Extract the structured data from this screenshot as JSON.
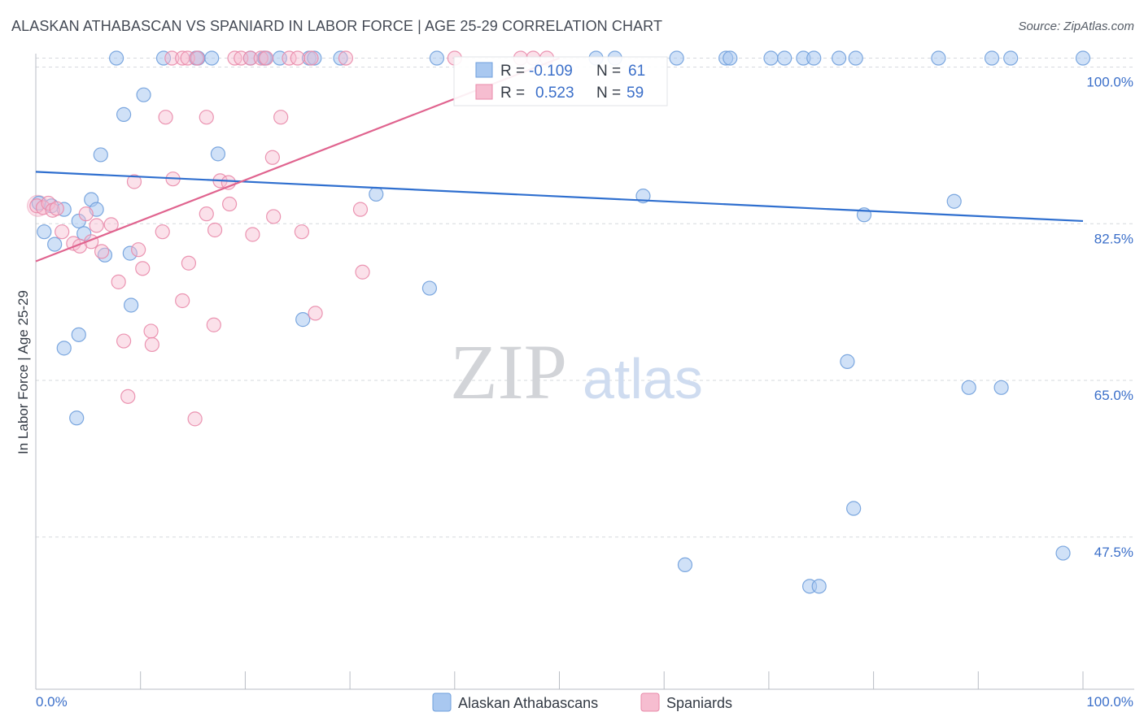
{
  "header": {
    "title": "ALASKAN ATHABASCAN VS SPANIARD IN LABOR FORCE | AGE 25-29 CORRELATION CHART",
    "source": "Source: ZipAtlas.com"
  },
  "watermark": {
    "zip": "ZIP",
    "atlas": "atlas"
  },
  "colors": {
    "blue_fill": "#a9c8f0",
    "blue_stroke": "#6f9fdc",
    "blue_line": "#2f6fcf",
    "pink_fill": "#f6bdd0",
    "pink_stroke": "#e98aaa",
    "pink_line": "#e0648f",
    "value_text": "#3b6fc9",
    "grid": "#d6d9de"
  },
  "stats": [
    {
      "r_label": "R =",
      "r_value": "-0.109",
      "n_label": "N =",
      "n_value": "61"
    },
    {
      "r_label": "R =",
      "r_value": "0.523",
      "n_label": "N =",
      "n_value": "59"
    }
  ],
  "chart_data": {
    "type": "scatter",
    "title": "ALASKAN ATHABASCAN VS SPANIARD IN LABOR FORCE | AGE 25-29 CORRELATION CHART",
    "xlabel": "",
    "ylabel": "In Labor Force | Age 25-29",
    "xlim": [
      0,
      100
    ],
    "ylim": [
      30.5,
      101.5
    ],
    "x_tick_labels": [
      "0.0%",
      "100.0%"
    ],
    "y_ticks": [
      47.5,
      65.0,
      82.5,
      100.0
    ],
    "y_tick_labels": [
      "47.5%",
      "65.0%",
      "82.5%",
      "100.0%"
    ],
    "grid": true,
    "legend_position": "bottom-center",
    "series": [
      {
        "name": "Alaskan Athabascans",
        "color": "#a9c8f0",
        "trend": {
          "x": [
            0,
            100
          ],
          "y": [
            88.3,
            82.8
          ]
        },
        "points": [
          [
            0.3,
            84.8
          ],
          [
            1.5,
            84.5
          ],
          [
            2.7,
            84.1
          ],
          [
            4.1,
            82.8
          ],
          [
            5.3,
            85.2
          ],
          [
            5.8,
            84.1
          ],
          [
            0.8,
            81.6
          ],
          [
            1.8,
            80.2
          ],
          [
            4.6,
            81.4
          ],
          [
            6.6,
            79.0
          ],
          [
            9.0,
            79.2
          ],
          [
            9.1,
            73.4
          ],
          [
            2.7,
            68.6
          ],
          [
            4.1,
            70.1
          ],
          [
            3.9,
            60.8
          ],
          [
            6.2,
            90.2
          ],
          [
            8.4,
            94.7
          ],
          [
            10.3,
            96.9
          ],
          [
            17.4,
            90.3
          ],
          [
            32.5,
            85.8
          ],
          [
            25.5,
            71.8
          ],
          [
            37.6,
            75.3
          ],
          [
            58.0,
            85.6
          ],
          [
            79.1,
            83.5
          ],
          [
            87.7,
            85.0
          ],
          [
            77.5,
            67.1
          ],
          [
            89.1,
            64.2
          ],
          [
            92.2,
            64.2
          ],
          [
            78.1,
            50.7
          ],
          [
            62.0,
            44.4
          ],
          [
            73.9,
            42.0
          ],
          [
            74.8,
            42.0
          ],
          [
            98.1,
            45.7
          ],
          [
            7.7,
            101.0
          ],
          [
            12.2,
            101.0
          ],
          [
            15.3,
            101.0
          ],
          [
            15.5,
            101.0
          ],
          [
            16.8,
            101.0
          ],
          [
            20.5,
            101.0
          ],
          [
            21.8,
            101.0
          ],
          [
            23.3,
            101.0
          ],
          [
            26.1,
            101.0
          ],
          [
            26.6,
            101.0
          ],
          [
            29.1,
            101.0
          ],
          [
            38.3,
            101.0
          ],
          [
            53.5,
            101.0
          ],
          [
            55.3,
            101.0
          ],
          [
            61.2,
            101.0
          ],
          [
            65.9,
            101.0
          ],
          [
            66.3,
            101.0
          ],
          [
            70.2,
            101.0
          ],
          [
            71.5,
            101.0
          ],
          [
            73.3,
            101.0
          ],
          [
            74.3,
            101.0
          ],
          [
            76.7,
            101.0
          ],
          [
            78.3,
            101.0
          ],
          [
            86.2,
            101.0
          ],
          [
            91.3,
            101.0
          ],
          [
            93.1,
            101.0
          ],
          [
            100.0,
            101.0
          ],
          [
            21.9,
            101.0
          ]
        ]
      },
      {
        "name": "Spaniards",
        "color": "#f6bdd0",
        "trend": {
          "x": [
            0,
            50
          ],
          "y": [
            78.3,
            101.0
          ]
        },
        "points": [
          [
            0.1,
            84.5
          ],
          [
            0.7,
            84.3
          ],
          [
            1.2,
            84.8
          ],
          [
            1.6,
            84.0
          ],
          [
            2.0,
            84.2
          ],
          [
            2.5,
            81.6
          ],
          [
            3.6,
            80.3
          ],
          [
            4.2,
            80.0
          ],
          [
            4.8,
            83.6
          ],
          [
            5.3,
            80.5
          ],
          [
            5.8,
            82.3
          ],
          [
            6.3,
            79.4
          ],
          [
            7.2,
            82.4
          ],
          [
            7.9,
            76.0
          ],
          [
            8.4,
            69.4
          ],
          [
            8.8,
            63.2
          ],
          [
            9.8,
            79.6
          ],
          [
            10.2,
            77.5
          ],
          [
            11.0,
            70.5
          ],
          [
            11.1,
            69.0
          ],
          [
            9.4,
            87.2
          ],
          [
            12.1,
            81.6
          ],
          [
            12.4,
            94.4
          ],
          [
            13.1,
            87.5
          ],
          [
            14.0,
            73.9
          ],
          [
            14.6,
            78.1
          ],
          [
            15.2,
            60.7
          ],
          [
            16.3,
            83.6
          ],
          [
            16.3,
            94.4
          ],
          [
            17.1,
            81.8
          ],
          [
            17.6,
            87.3
          ],
          [
            18.4,
            87.1
          ],
          [
            18.5,
            84.7
          ],
          [
            17.0,
            71.2
          ],
          [
            20.7,
            81.3
          ],
          [
            22.6,
            89.9
          ],
          [
            22.7,
            83.3
          ],
          [
            23.4,
            94.4
          ],
          [
            25.4,
            81.6
          ],
          [
            26.7,
            72.5
          ],
          [
            31.0,
            84.1
          ],
          [
            31.2,
            77.1
          ],
          [
            13.0,
            101.0
          ],
          [
            14.0,
            101.0
          ],
          [
            14.5,
            101.0
          ],
          [
            15.4,
            101.0
          ],
          [
            19.0,
            101.0
          ],
          [
            19.6,
            101.0
          ],
          [
            20.5,
            101.0
          ],
          [
            21.5,
            101.0
          ],
          [
            22.0,
            101.0
          ],
          [
            24.2,
            101.0
          ],
          [
            25.0,
            101.0
          ],
          [
            26.3,
            101.0
          ],
          [
            29.6,
            101.0
          ],
          [
            40.0,
            101.0
          ],
          [
            46.3,
            101.0
          ],
          [
            47.5,
            101.0
          ],
          [
            48.8,
            101.0
          ]
        ]
      }
    ]
  }
}
